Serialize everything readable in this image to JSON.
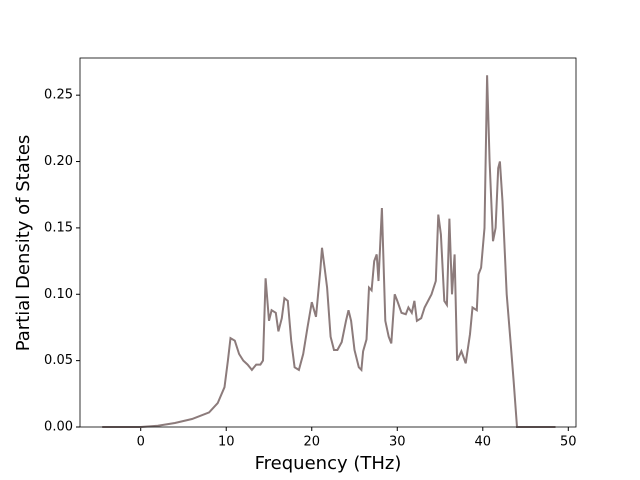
{
  "chart_data": {
    "type": "line",
    "xlabel": "Frequency (THz)",
    "ylabel": "Partial Density of States",
    "color": "#8c7b7b",
    "x": [
      -4.5,
      0,
      2,
      4,
      6,
      8,
      9,
      9.8,
      10.2,
      10.5,
      11,
      11.5,
      12,
      12.5,
      13,
      13.5,
      14,
      14.3,
      14.6,
      15,
      15.3,
      15.8,
      16.1,
      16.5,
      16.8,
      17.2,
      17.6,
      18,
      18.5,
      19,
      19.5,
      20,
      20.5,
      21,
      21.2,
      21.5,
      21.8,
      22.2,
      22.6,
      23,
      23.5,
      24,
      24.3,
      24.6,
      25,
      25.5,
      25.8,
      26,
      26.4,
      26.7,
      27,
      27.3,
      27.6,
      27.8,
      28.2,
      28.6,
      29,
      29.3,
      29.7,
      30,
      30.5,
      31,
      31.3,
      31.7,
      32,
      32.3,
      32.8,
      33.2,
      34,
      34.5,
      34.8,
      35.1,
      35.5,
      35.8,
      36.1,
      36.4,
      36.7,
      37,
      37.5,
      38,
      38.5,
      38.8,
      39.3,
      39.5,
      39.8,
      40.2,
      40.5,
      40.8,
      41.2,
      41.5,
      41.8,
      42,
      42.3,
      42.8,
      43.3,
      43.6,
      44,
      48.5
    ],
    "values": [
      0,
      0,
      0.001,
      0.003,
      0.006,
      0.011,
      0.018,
      0.03,
      0.05,
      0.067,
      0.065,
      0.055,
      0.05,
      0.047,
      0.043,
      0.047,
      0.047,
      0.05,
      0.112,
      0.08,
      0.088,
      0.086,
      0.072,
      0.082,
      0.097,
      0.095,
      0.065,
      0.045,
      0.043,
      0.055,
      0.075,
      0.094,
      0.083,
      0.118,
      0.135,
      0.12,
      0.105,
      0.068,
      0.058,
      0.058,
      0.064,
      0.08,
      0.088,
      0.08,
      0.058,
      0.045,
      0.043,
      0.057,
      0.066,
      0.105,
      0.103,
      0.125,
      0.13,
      0.11,
      0.165,
      0.08,
      0.068,
      0.063,
      0.1,
      0.095,
      0.086,
      0.085,
      0.09,
      0.086,
      0.095,
      0.08,
      0.082,
      0.09,
      0.1,
      0.11,
      0.16,
      0.145,
      0.095,
      0.092,
      0.157,
      0.1,
      0.13,
      0.05,
      0.057,
      0.048,
      0.07,
      0.09,
      0.088,
      0.115,
      0.12,
      0.15,
      0.265,
      0.2,
      0.14,
      0.15,
      0.195,
      0.2,
      0.17,
      0.1,
      0.06,
      0.035,
      0,
      0
    ],
    "xlim": [
      -7.1,
      50.9
    ],
    "xticks": [
      0,
      10,
      20,
      30,
      40,
      50
    ],
    "ylim": [
      0,
      0.278
    ],
    "yticks": [
      {
        "value": 0,
        "label": "0.00"
      },
      0.05,
      {
        "value": 0.1,
        "label": "0.10"
      },
      0.15,
      {
        "value": 0.2,
        "label": "0.20"
      },
      0.25
    ]
  }
}
